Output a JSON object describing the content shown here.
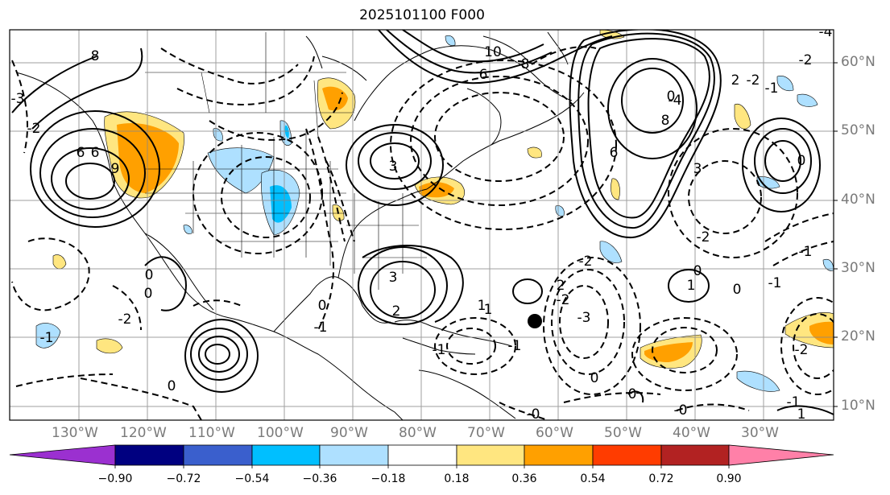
{
  "title": "2025101100 F000",
  "latitude_labels": [
    "60°N",
    "50°N",
    "40°N",
    "30°N",
    "20°N",
    "10°N"
  ],
  "longitude_labels": [
    "130°W",
    "120°W",
    "110°W",
    "100°W",
    "90°W",
    "80°W",
    "70°W",
    "60°W",
    "50°W",
    "40°W",
    "30°W"
  ],
  "colorbar": {
    "tick_labels": [
      "−0.90",
      "−0.72",
      "−0.54",
      "−0.36",
      "−0.18",
      "0.18",
      "0.36",
      "0.54",
      "0.72",
      "0.90"
    ],
    "colors": [
      "#9b30d0",
      "#000080",
      "#3a5fcd",
      "#00bfff",
      "#aee0ff",
      "#ffffff",
      "#ffe680",
      "#ffa000",
      "#ff3c00",
      "#b22222",
      "#ff80a8"
    ]
  },
  "contour_labels": [
    "8",
    "6",
    "-3",
    "-2",
    "6",
    "9",
    "-1",
    "3",
    "0",
    "-2",
    "-1",
    "0",
    "2",
    "3",
    "10",
    "8",
    "6",
    "0",
    "8",
    "6",
    "0",
    "3",
    "-2",
    "1",
    "0",
    "-1",
    "-3",
    "-2",
    "-2",
    "1",
    "0",
    "-1",
    "-1",
    "0",
    "-4",
    "2",
    "-2",
    "-1",
    "-0",
    "-0",
    "0",
    "1",
    "-1",
    "0",
    "-1",
    "-2",
    "0",
    "1",
    "2",
    "-4",
    "-2"
  ],
  "marker": "storm-center-dot"
}
